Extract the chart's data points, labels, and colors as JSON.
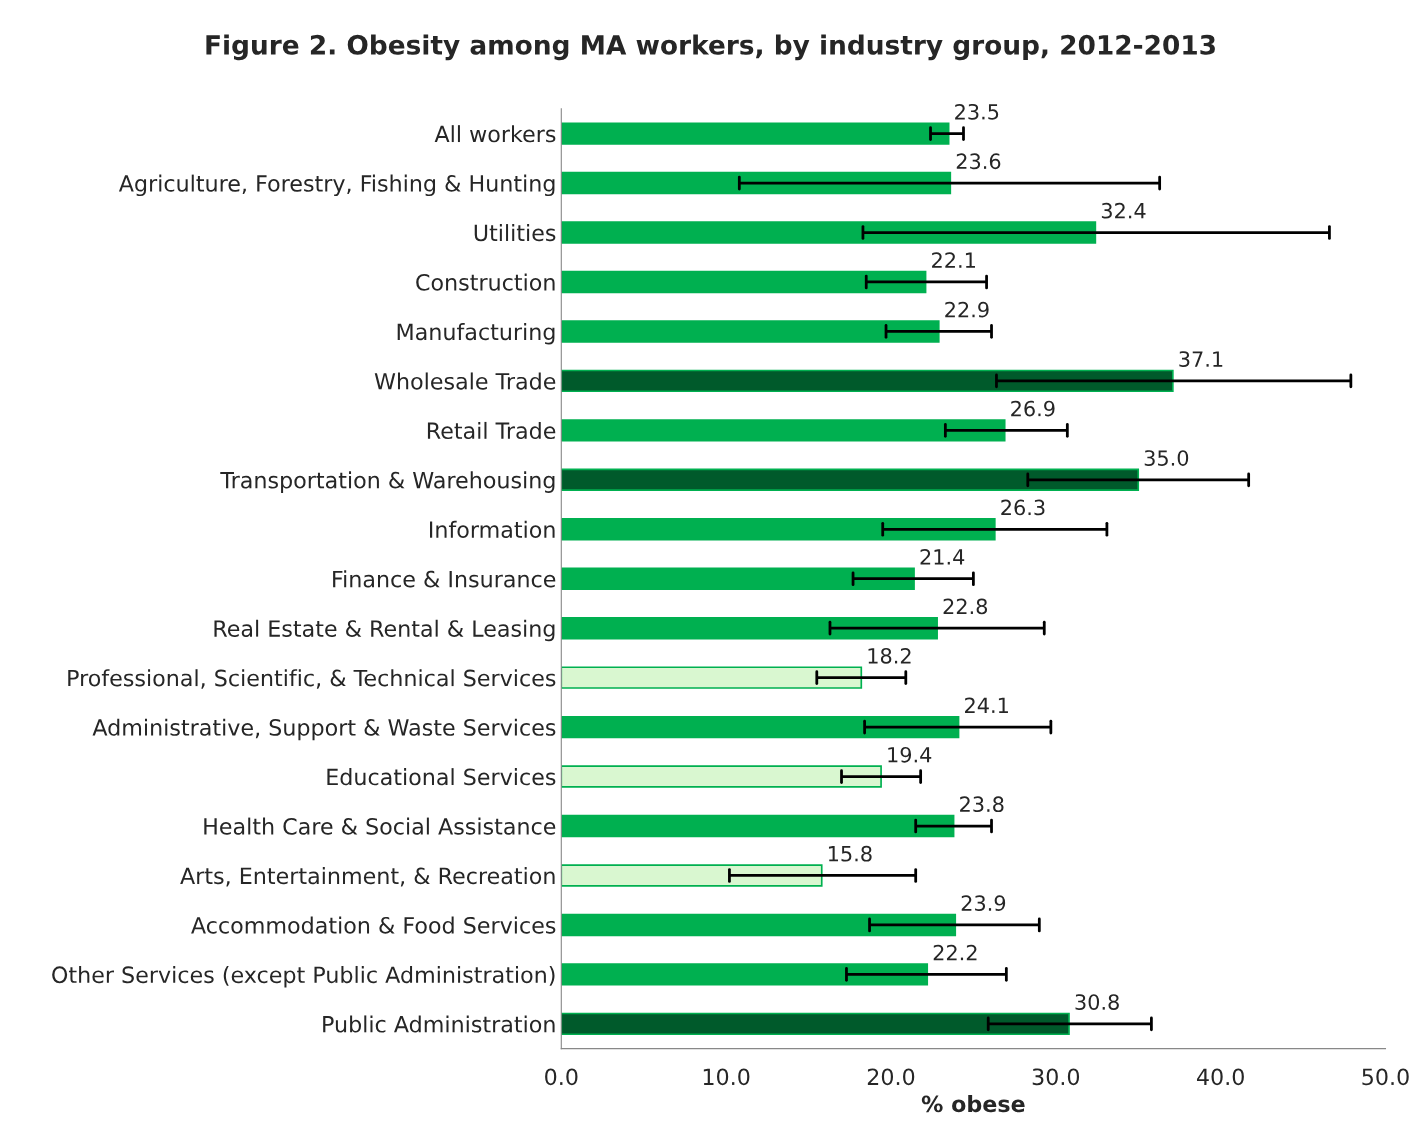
{
  "chart_data": {
    "type": "bar",
    "orientation": "horizontal",
    "title": "Figure 2. Obesity among MA workers, by industry group, 2012-2013",
    "xlabel": "% obese",
    "categories": [
      "All workers",
      "Agriculture, Forestry, Fishing & Hunting",
      "Utilities",
      "Construction",
      "Manufacturing",
      "Wholesale Trade",
      "Retail Trade",
      "Transportation & Warehousing",
      "Information",
      "Finance & Insurance",
      "Real Estate & Rental & Leasing",
      "Professional, Scientific, & Technical Services",
      "Administrative, Support & Waste Services",
      "Educational Services",
      "Health Care & Social Assistance",
      "Arts, Entertainment, & Recreation",
      "Accommodation & Food Services",
      "Other Services (except Public Administration)",
      "Public Administration"
    ],
    "values": [
      23.5,
      23.6,
      32.4,
      22.1,
      22.9,
      37.1,
      26.9,
      35.0,
      26.3,
      21.4,
      22.8,
      18.2,
      24.1,
      19.4,
      23.8,
      15.8,
      23.9,
      22.2,
      30.8
    ],
    "value_labels": [
      "23.5",
      "23.6",
      "32.4",
      "22.1",
      "22.9",
      "37.1",
      "26.9",
      "35.0",
      "26.3",
      "21.4",
      "22.8",
      "18.2",
      "24.1",
      "19.4",
      "23.8",
      "15.8",
      "23.9",
      "22.2",
      "30.8"
    ],
    "colors": [
      "#00b050",
      "#00b050",
      "#00b050",
      "#00b050",
      "#00b050",
      "#005a2b",
      "#00b050",
      "#005a2b",
      "#00b050",
      "#00b050",
      "#00b050",
      "#d9f7d0",
      "#00b050",
      "#d9f7d0",
      "#00b050",
      "#d9f7d0",
      "#00b050",
      "#00b050",
      "#005a2b"
    ],
    "errors": [
      [
        22.4,
        24.4
      ],
      [
        10.8,
        36.3
      ],
      [
        18.3,
        46.6
      ],
      [
        18.5,
        25.8
      ],
      [
        19.7,
        26.1
      ],
      [
        26.4,
        47.9
      ],
      [
        23.3,
        30.7
      ],
      [
        28.3,
        41.7
      ],
      [
        19.5,
        33.1
      ],
      [
        17.7,
        25.0
      ],
      [
        16.3,
        29.3
      ],
      [
        15.5,
        20.9
      ],
      [
        18.4,
        29.7
      ],
      [
        17.0,
        21.8
      ],
      [
        21.5,
        26.1
      ],
      [
        10.2,
        21.5
      ],
      [
        18.7,
        29.0
      ],
      [
        17.3,
        27.0
      ],
      [
        25.9,
        35.8
      ]
    ],
    "xlim": [
      0,
      50
    ],
    "xticks": [
      {
        "value": 0,
        "label": "0.0"
      },
      {
        "value": 10,
        "label": "10.0"
      },
      {
        "value": 20,
        "label": "20.0"
      },
      {
        "value": 30,
        "label": "30.0"
      },
      {
        "value": 40,
        "label": "40.0"
      },
      {
        "value": 50,
        "label": "50.0"
      }
    ],
    "grid": false,
    "legend": false
  }
}
